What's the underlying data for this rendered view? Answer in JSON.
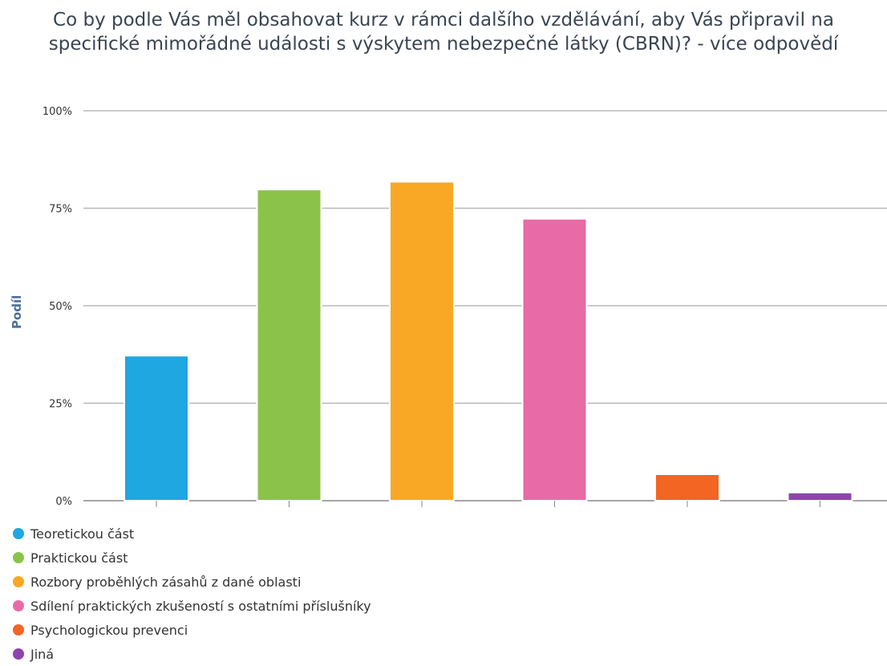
{
  "chart_data": {
    "type": "bar",
    "title": "Co by podle Vás měl obsahovat kurz v rámci dalšího vzdělávání, aby Vás připravil na specifické mimořádné události s výskytem nebezpečné látky (CBRN)? - více odpovědí",
    "ylabel": "Podíl",
    "xlabel": "",
    "ylim": [
      0,
      100
    ],
    "y_ticks": [
      "0%",
      "25%",
      "50%",
      "75%",
      "100%"
    ],
    "grid": true,
    "legend_position": "bottom-left",
    "categories": [
      "Teoretickou část",
      "Praktickou část",
      "Rozbory proběhlých zásahů z dané oblasti",
      "Sdílení praktických zkušeností s ostatními příslušníky",
      "Psychologickou prevenci",
      "Jiná"
    ],
    "values": [
      37.2,
      79.8,
      81.8,
      72.3,
      6.8,
      2.1
    ],
    "colors": [
      "#1ea7e0",
      "#8bc34a",
      "#f9a825",
      "#e86aa6",
      "#f26522",
      "#8e44ad"
    ]
  }
}
